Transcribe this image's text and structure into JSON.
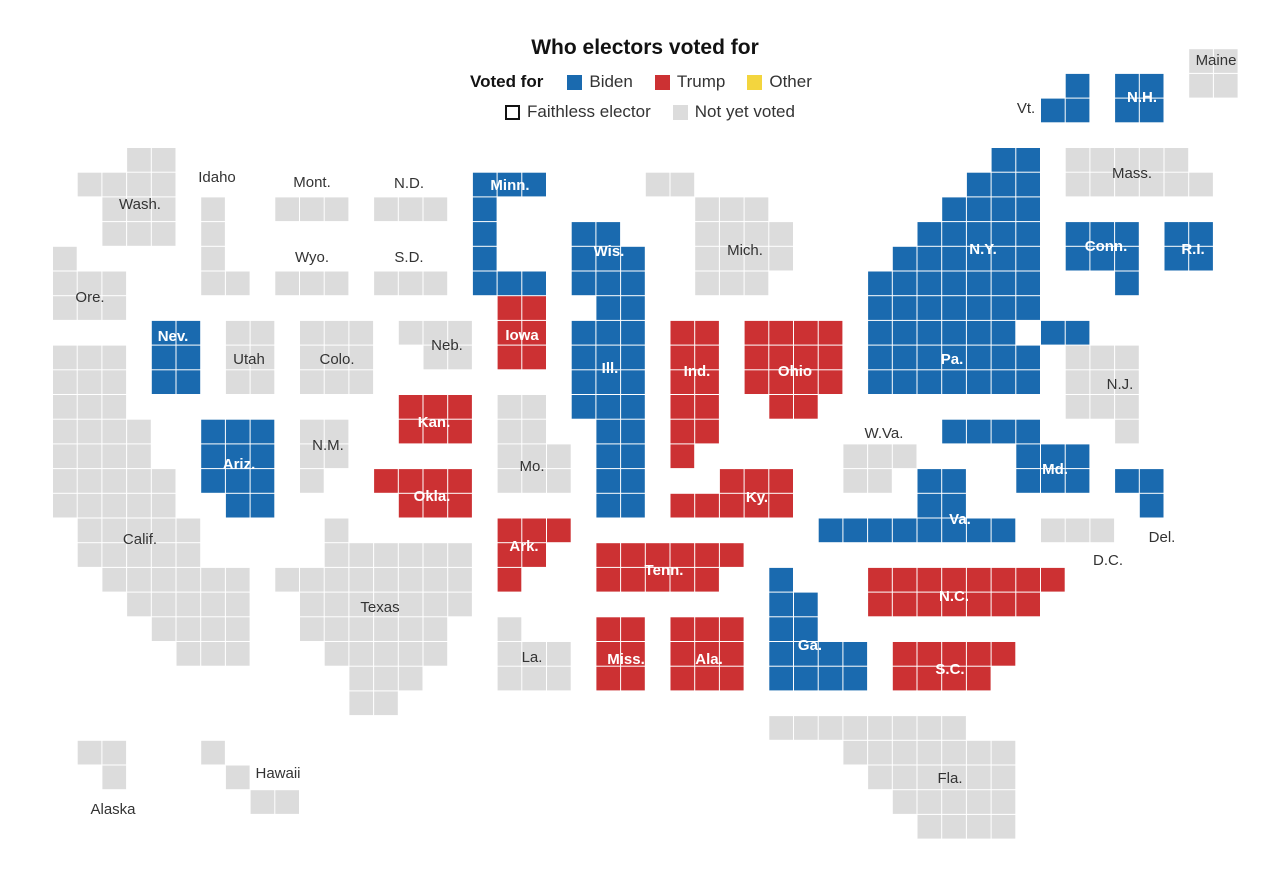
{
  "title": "Who electors voted for",
  "legend": {
    "heading": "Voted for",
    "items": [
      {
        "key": "biden",
        "label": "Biden"
      },
      {
        "key": "trump",
        "label": "Trump"
      },
      {
        "key": "other",
        "label": "Other"
      }
    ],
    "faithless_label": "Faithless elector",
    "not_voted_label": "Not yet voted"
  },
  "colors": {
    "biden": "#1a6aaf",
    "trump": "#cc3133",
    "other": "#f3d53e",
    "pending": "#dcdcdc",
    "label_light": "#ffffff",
    "label_dark": "#333333"
  },
  "states": [
    {
      "abbr": "Maine",
      "status": "pending"
    },
    {
      "abbr": "Vt.",
      "status": "biden"
    },
    {
      "abbr": "N.H.",
      "status": "biden"
    },
    {
      "abbr": "Wash.",
      "status": "pending"
    },
    {
      "abbr": "Idaho",
      "status": "pending"
    },
    {
      "abbr": "Mont.",
      "status": "pending"
    },
    {
      "abbr": "N.D.",
      "status": "pending"
    },
    {
      "abbr": "Minn.",
      "status": "biden"
    },
    {
      "abbr": "Wis.",
      "status": "biden"
    },
    {
      "abbr": "Mich.",
      "status": "pending"
    },
    {
      "abbr": "N.Y.",
      "status": "biden"
    },
    {
      "abbr": "Mass.",
      "status": "pending"
    },
    {
      "abbr": "Conn.",
      "status": "biden"
    },
    {
      "abbr": "R.I.",
      "status": "biden"
    },
    {
      "abbr": "Wyo.",
      "status": "pending"
    },
    {
      "abbr": "S.D.",
      "status": "pending"
    },
    {
      "abbr": "Ore.",
      "status": "pending"
    },
    {
      "abbr": "Nev.",
      "status": "biden"
    },
    {
      "abbr": "Utah",
      "status": "pending"
    },
    {
      "abbr": "Colo.",
      "status": "pending"
    },
    {
      "abbr": "Neb.",
      "status": "pending"
    },
    {
      "abbr": "Iowa",
      "status": "trump"
    },
    {
      "abbr": "Ill.",
      "status": "biden"
    },
    {
      "abbr": "Ind.",
      "status": "trump"
    },
    {
      "abbr": "Ohio",
      "status": "trump"
    },
    {
      "abbr": "Pa.",
      "status": "biden"
    },
    {
      "abbr": "N.J.",
      "status": "pending"
    },
    {
      "abbr": "Kan.",
      "status": "trump"
    },
    {
      "abbr": "W.Va.",
      "status": "pending"
    },
    {
      "abbr": "Ariz.",
      "status": "biden"
    },
    {
      "abbr": "N.M.",
      "status": "pending"
    },
    {
      "abbr": "Md.",
      "status": "biden"
    },
    {
      "abbr": "Mo.",
      "status": "pending"
    },
    {
      "abbr": "Okla.",
      "status": "trump"
    },
    {
      "abbr": "Ky.",
      "status": "trump"
    },
    {
      "abbr": "Va.",
      "status": "biden"
    },
    {
      "abbr": "Del.",
      "status": "biden"
    },
    {
      "abbr": "Calif.",
      "status": "pending"
    },
    {
      "abbr": "Ark.",
      "status": "trump"
    },
    {
      "abbr": "D.C.",
      "status": "pending"
    },
    {
      "abbr": "Tenn.",
      "status": "trump"
    },
    {
      "abbr": "N.C.",
      "status": "trump"
    },
    {
      "abbr": "Texas",
      "status": "pending"
    },
    {
      "abbr": "Ga.",
      "status": "biden"
    },
    {
      "abbr": "La.",
      "status": "pending"
    },
    {
      "abbr": "Miss.",
      "status": "trump"
    },
    {
      "abbr": "Ala.",
      "status": "trump"
    },
    {
      "abbr": "S.C.",
      "status": "trump"
    },
    {
      "abbr": "Fla.",
      "status": "pending"
    },
    {
      "abbr": "Hawaii",
      "status": "pending"
    },
    {
      "abbr": "Alaska",
      "status": "pending"
    }
  ]
}
